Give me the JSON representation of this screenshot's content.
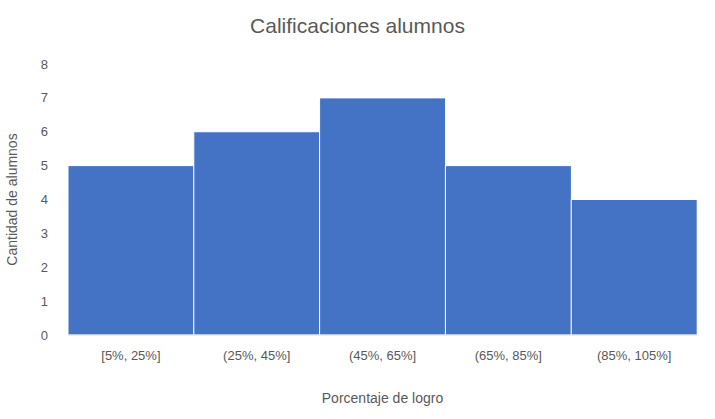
{
  "chart_data": {
    "type": "histogram",
    "title": "Calificaciones alumnos",
    "x_label": "Porcentaje de logro",
    "y_label": "Cantidad de alumnos",
    "categories": [
      "[5%, 25%]",
      "(25%, 45%]",
      "(45%, 65%]",
      "(65%, 85%]",
      "(85%, 105%]"
    ],
    "values": [
      5,
      6,
      7,
      5,
      4
    ],
    "color": "#4472c4",
    "ylim": [
      0,
      8
    ],
    "yticks": [
      0,
      1,
      2,
      3,
      4,
      5,
      6,
      7,
      8
    ],
    "grid": false
  }
}
